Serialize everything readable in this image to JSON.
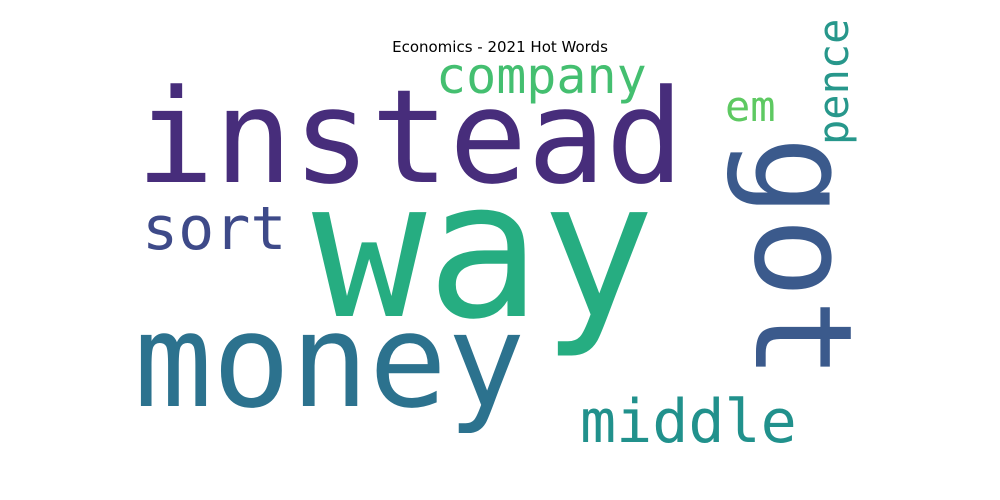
{
  "chart_data": {
    "type": "wordcloud",
    "title": "Economics - 2021 Hot Words",
    "words": [
      {
        "text": "way",
        "weight": 1.0,
        "color": "#26ad81",
        "rotate": 0
      },
      {
        "text": "instead",
        "weight": 0.7,
        "color": "#472d7b",
        "rotate": 0
      },
      {
        "text": "money",
        "weight": 0.7,
        "color": "#2c728e",
        "rotate": 0
      },
      {
        "text": "got",
        "weight": 0.55,
        "color": "#3b5a8c",
        "rotate": 90
      },
      {
        "text": "company",
        "weight": 0.27,
        "color": "#44bf70",
        "rotate": 0
      },
      {
        "text": "sort",
        "weight": 0.27,
        "color": "#3e4a89",
        "rotate": 0
      },
      {
        "text": "middle",
        "weight": 0.27,
        "color": "#21918c",
        "rotate": 0
      },
      {
        "text": "em",
        "weight": 0.2,
        "color": "#5ec962",
        "rotate": 0
      },
      {
        "text": "pence",
        "weight": 0.2,
        "color": "#27978b",
        "rotate": 270
      }
    ]
  }
}
